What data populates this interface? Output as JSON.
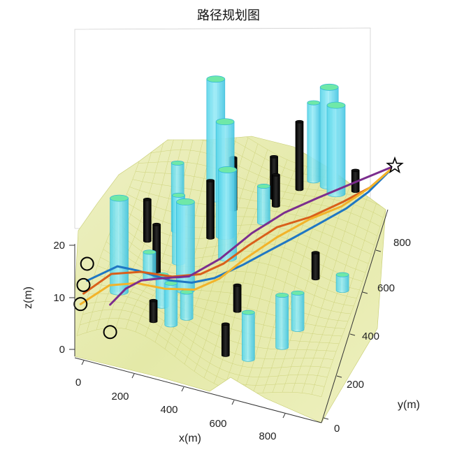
{
  "chart_data": {
    "type": "3d-path-plot",
    "title": "路径规划图",
    "xlabel": "x(m)",
    "ylabel": "y(m)",
    "zlabel": "z(m)",
    "x_ticks": [
      0,
      200,
      400,
      600,
      800
    ],
    "y_ticks": [
      0,
      200,
      400,
      600,
      800
    ],
    "z_ticks": [
      0,
      10,
      20
    ],
    "xlim": [
      0,
      1000
    ],
    "ylim": [
      0,
      1000
    ],
    "zlim": [
      0,
      20
    ],
    "grid": true,
    "terrain_color": "#e8ecb0",
    "goal": {
      "x": 1000,
      "y": 1000,
      "marker": "star"
    },
    "starts": [
      {
        "x": 0,
        "y": 140,
        "z": 12.5,
        "marker": "circle"
      },
      {
        "x": 0,
        "y": 90,
        "z": 10.5,
        "marker": "circle"
      },
      {
        "x": 0,
        "y": 50,
        "z": 8.5,
        "marker": "circle"
      },
      {
        "x": 130,
        "y": 20,
        "z": 6,
        "marker": "circle"
      }
    ],
    "series": [
      {
        "color": "#1f77c4",
        "points": [
          [
            0,
            140
          ],
          [
            100,
            220
          ],
          [
            180,
            240
          ],
          [
            300,
            270
          ],
          [
            380,
            300
          ],
          [
            460,
            340
          ],
          [
            560,
            400
          ],
          [
            640,
            460
          ],
          [
            720,
            540
          ],
          [
            800,
            640
          ],
          [
            880,
            740
          ],
          [
            940,
            840
          ],
          [
            1000,
            1000
          ]
        ]
      },
      {
        "color": "#d95f1a",
        "points": [
          [
            0,
            90
          ],
          [
            90,
            170
          ],
          [
            190,
            240
          ],
          [
            300,
            300
          ],
          [
            400,
            350
          ],
          [
            480,
            400
          ],
          [
            560,
            470
          ],
          [
            650,
            560
          ],
          [
            760,
            650
          ],
          [
            860,
            760
          ],
          [
            940,
            860
          ],
          [
            1000,
            1000
          ]
        ]
      },
      {
        "color": "#f2b32a",
        "points": [
          [
            0,
            50
          ],
          [
            100,
            110
          ],
          [
            200,
            150
          ],
          [
            300,
            200
          ],
          [
            400,
            270
          ],
          [
            480,
            340
          ],
          [
            560,
            420
          ],
          [
            660,
            520
          ],
          [
            760,
            640
          ],
          [
            860,
            740
          ],
          [
            940,
            860
          ],
          [
            1000,
            1000
          ]
        ]
      },
      {
        "color": "#7b2d8e",
        "points": [
          [
            130,
            20
          ],
          [
            170,
            100
          ],
          [
            210,
            180
          ],
          [
            270,
            260
          ],
          [
            360,
            330
          ],
          [
            460,
            420
          ],
          [
            560,
            520
          ],
          [
            660,
            630
          ],
          [
            760,
            740
          ],
          [
            880,
            860
          ],
          [
            1000,
            1000
          ]
        ]
      }
    ],
    "obstacles_cyan": [
      {
        "x": 110,
        "y": 210,
        "h": 17
      },
      {
        "x": 260,
        "y": 520,
        "h": 12
      },
      {
        "x": 330,
        "y": 380,
        "h": 16
      },
      {
        "x": 340,
        "y": 760,
        "h": 22
      },
      {
        "x": 460,
        "y": 520,
        "h": 16
      },
      {
        "x": 420,
        "y": 620,
        "h": 21
      },
      {
        "x": 220,
        "y": 640,
        "h": 12
      },
      {
        "x": 560,
        "y": 680,
        "h": 6
      },
      {
        "x": 680,
        "y": 960,
        "h": 14
      },
      {
        "x": 750,
        "y": 940,
        "h": 18
      },
      {
        "x": 790,
        "y": 900,
        "h": 16
      },
      {
        "x": 340,
        "y": 150,
        "h": 7
      },
      {
        "x": 380,
        "y": 230,
        "h": 4
      },
      {
        "x": 650,
        "y": 170,
        "h": 8
      },
      {
        "x": 770,
        "y": 230,
        "h": 9
      },
      {
        "x": 810,
        "y": 310,
        "h": 6
      },
      {
        "x": 930,
        "y": 520,
        "h": 2
      },
      {
        "x": 280,
        "y": 230,
        "h": 5
      },
      {
        "x": 180,
        "y": 390,
        "h": 4
      }
    ],
    "obstacles_black": [
      {
        "x": 120,
        "y": 560,
        "h": 7
      },
      {
        "x": 200,
        "y": 420,
        "h": 9
      },
      {
        "x": 280,
        "y": 110,
        "h": 3
      },
      {
        "x": 420,
        "y": 730,
        "h": 9
      },
      {
        "x": 560,
        "y": 820,
        "h": 7
      },
      {
        "x": 580,
        "y": 780,
        "h": 5
      },
      {
        "x": 640,
        "y": 900,
        "h": 12
      },
      {
        "x": 560,
        "y": 320,
        "h": 4
      },
      {
        "x": 560,
        "y": 160,
        "h": 5
      },
      {
        "x": 820,
        "y": 520,
        "h": 4
      },
      {
        "x": 860,
        "y": 930,
        "h": 3
      },
      {
        "x": 360,
        "y": 620,
        "h": 10
      }
    ]
  }
}
